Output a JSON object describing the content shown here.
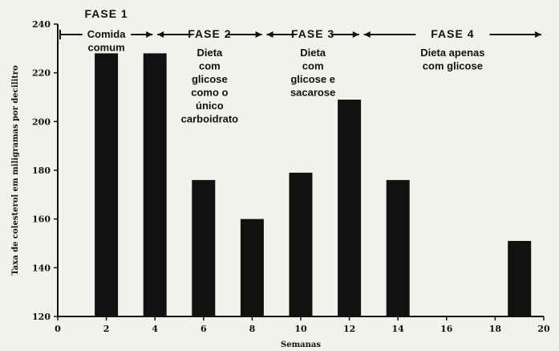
{
  "chart_data": {
    "type": "bar",
    "ylabel": "Taxa de colesterol em miligramas por decilitro",
    "xlabel": "Semanas",
    "ylim": [
      120,
      240
    ],
    "xlim": [
      0,
      20
    ],
    "yticks": [
      120,
      140,
      160,
      180,
      200,
      220,
      240
    ],
    "xticks": [
      0,
      2,
      4,
      6,
      8,
      10,
      12,
      14,
      16,
      18,
      20
    ],
    "xtick_labels": [
      "0",
      "2",
      "4",
      "6",
      "8",
      "10",
      "12",
      "14",
      "16",
      "18",
      "20"
    ],
    "x": [
      2,
      4,
      6,
      8,
      10,
      12,
      14,
      19
    ],
    "values": [
      228,
      228,
      176,
      160,
      179,
      209,
      176,
      151
    ],
    "grid": false,
    "colors": {
      "bar": "#111111",
      "axis": "#111111",
      "background": "#f3f1ec"
    },
    "phases": [
      {
        "title": "FASE 1",
        "start_week": 0,
        "end_week": 4,
        "description": [
          "Comida",
          "comum"
        ]
      },
      {
        "title": "FASE 2",
        "start_week": 4,
        "end_week": 8.5,
        "description": [
          "Dieta",
          "com",
          "glicose",
          "como o",
          "único",
          "carboidrato"
        ]
      },
      {
        "title": "FASE 3",
        "start_week": 8.5,
        "end_week": 12.5,
        "description": [
          "Dieta",
          "com",
          "glicose e",
          "sacarose"
        ]
      },
      {
        "title": "FASE 4",
        "start_week": 12.5,
        "end_week": 20,
        "description": [
          "Dieta apenas",
          "com glicose"
        ]
      }
    ]
  }
}
